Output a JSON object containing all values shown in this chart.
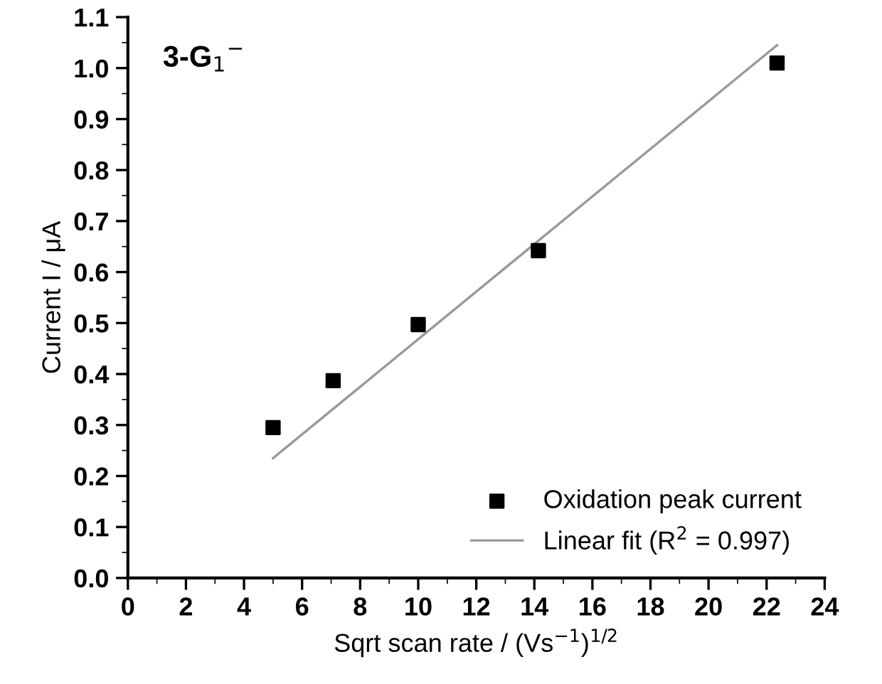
{
  "chart_data": {
    "type": "scatter",
    "title": "3-G$_{1}$$^{−}$",
    "xlabel": "Sqrt scan rate / (Vs$^{−1}$)$^{1/2}$",
    "ylabel": "Current I / μA",
    "series": [
      {
        "name": "Oxidation peak current",
        "color": "#000000",
        "marker": "square",
        "x": [
          5,
          7.07,
          10,
          14.14,
          22.36
        ],
        "values": [
          0.295,
          0.387,
          0.497,
          0.642,
          1.01
        ]
      },
      {
        "name": "Linear fit (R$^{2}$ = 0.997)",
        "type": "line",
        "color": "#999999",
        "marker": "none",
        "line_style": "solid",
        "x": [
          5,
          22.36
        ],
        "values": [
          0.235,
          1.045
        ]
      }
    ],
    "xlim": [
      0,
      24
    ],
    "xticks": [
      0,
      2,
      4,
      6,
      8,
      10,
      12,
      14,
      16,
      18,
      20,
      22,
      24
    ],
    "ylim": [
      0,
      1.1
    ],
    "yticks": [
      {
        "value": 0,
        "label": "0.0"
      },
      {
        "value": 0.1,
        "label": "0.1"
      },
      {
        "value": 0.2,
        "label": "0.2"
      },
      {
        "value": 0.3,
        "label": "0.3"
      },
      {
        "value": 0.4,
        "label": "0.4"
      },
      {
        "value": 0.5,
        "label": "0.5"
      },
      {
        "value": 0.6,
        "label": "0.6"
      },
      {
        "value": 0.7,
        "label": "0.7"
      },
      {
        "value": 0.8,
        "label": "0.8"
      },
      {
        "value": 0.9,
        "label": "0.9"
      },
      {
        "value": 1.0,
        "label": "1.0"
      },
      {
        "value": 1.1,
        "label": "1.1"
      }
    ],
    "grid": false,
    "legend": "bottom right"
  }
}
